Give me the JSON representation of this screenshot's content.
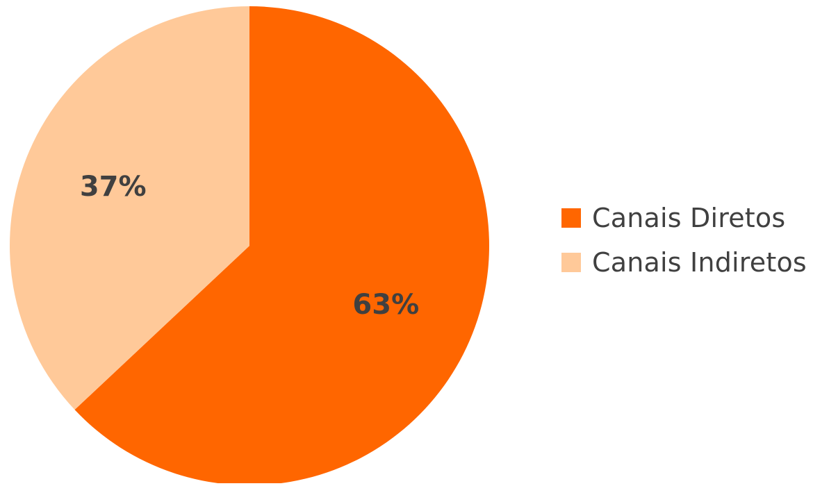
{
  "chart_data": {
    "type": "pie",
    "categories": [
      "Canais Diretos",
      "Canais Indiretos"
    ],
    "values": [
      63,
      37
    ],
    "labels": [
      "63%",
      "37%"
    ],
    "colors": [
      "#FF6600",
      "#FFC999"
    ],
    "start_angle": "12 o'clock, clockwise",
    "legend": "right"
  },
  "legend": {
    "items": [
      {
        "label": "Canais Diretos",
        "color": "#FF6600"
      },
      {
        "label": "Canais Indiretos",
        "color": "#FFC999"
      }
    ]
  }
}
